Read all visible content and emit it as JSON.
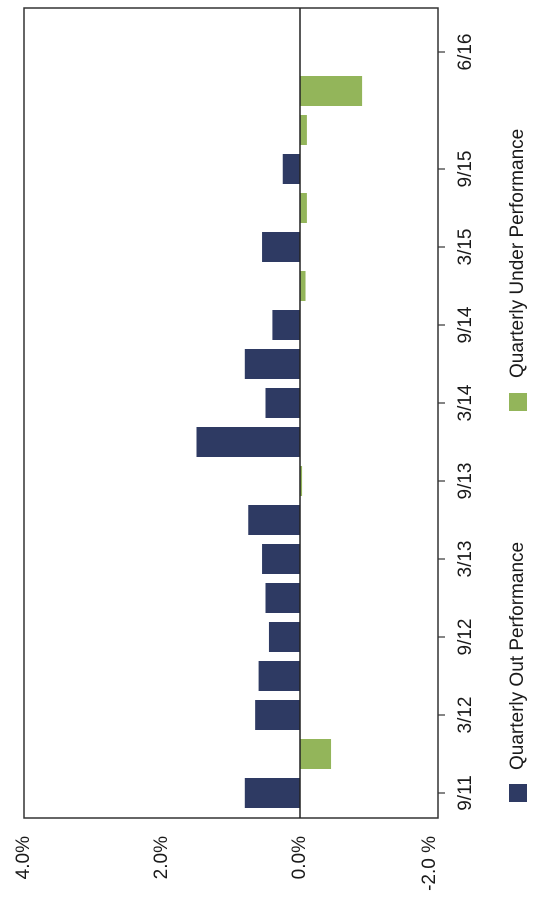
{
  "chart_data": {
    "type": "bar",
    "orientation": "rotated",
    "categories": [
      "9/11",
      "12/11",
      "3/12",
      "6/12",
      "9/12",
      "12/12",
      "3/13",
      "6/13",
      "9/13",
      "12/13",
      "3/14",
      "6/14",
      "9/14",
      "12/14",
      "3/15",
      "6/15",
      "9/15",
      "12/15",
      "3/16",
      "6/16"
    ],
    "x_tick_labels": [
      "9/11",
      "3/12",
      "9/12",
      "3/13",
      "9/13",
      "3/14",
      "9/14",
      "3/15",
      "9/15",
      "6/16"
    ],
    "series": [
      {
        "name": "Quarterly Out Performance",
        "color": "#2e3a63",
        "values": [
          0.8,
          null,
          0.65,
          0.6,
          0.45,
          0.5,
          0.55,
          0.75,
          null,
          1.5,
          0.5,
          0.8,
          0.4,
          null,
          0.55,
          null,
          0.25,
          null,
          null,
          null
        ]
      },
      {
        "name": "Quarterly Under Performance",
        "color": "#93b55a",
        "values": [
          null,
          -0.45,
          null,
          null,
          null,
          null,
          null,
          null,
          -0.03,
          null,
          null,
          null,
          null,
          -0.08,
          null,
          -0.1,
          null,
          -0.1,
          -0.9,
          null
        ]
      }
    ],
    "ylim": [
      -2.0,
      4.0
    ],
    "y_ticks": [
      {
        "value": 4.0,
        "label": "4.0%"
      },
      {
        "value": 2.0,
        "label": "2.0%"
      },
      {
        "value": 0.0,
        "label": "0.0%"
      },
      {
        "value": -2.0,
        "label": "-2.0 %"
      }
    ],
    "legend": {
      "placement": "bottom",
      "items": [
        {
          "label": "Quarterly Out Performance",
          "color": "#2e3a63"
        },
        {
          "label": "Quarterly Under Performance",
          "color": "#93b55a"
        }
      ]
    },
    "grid": false
  }
}
